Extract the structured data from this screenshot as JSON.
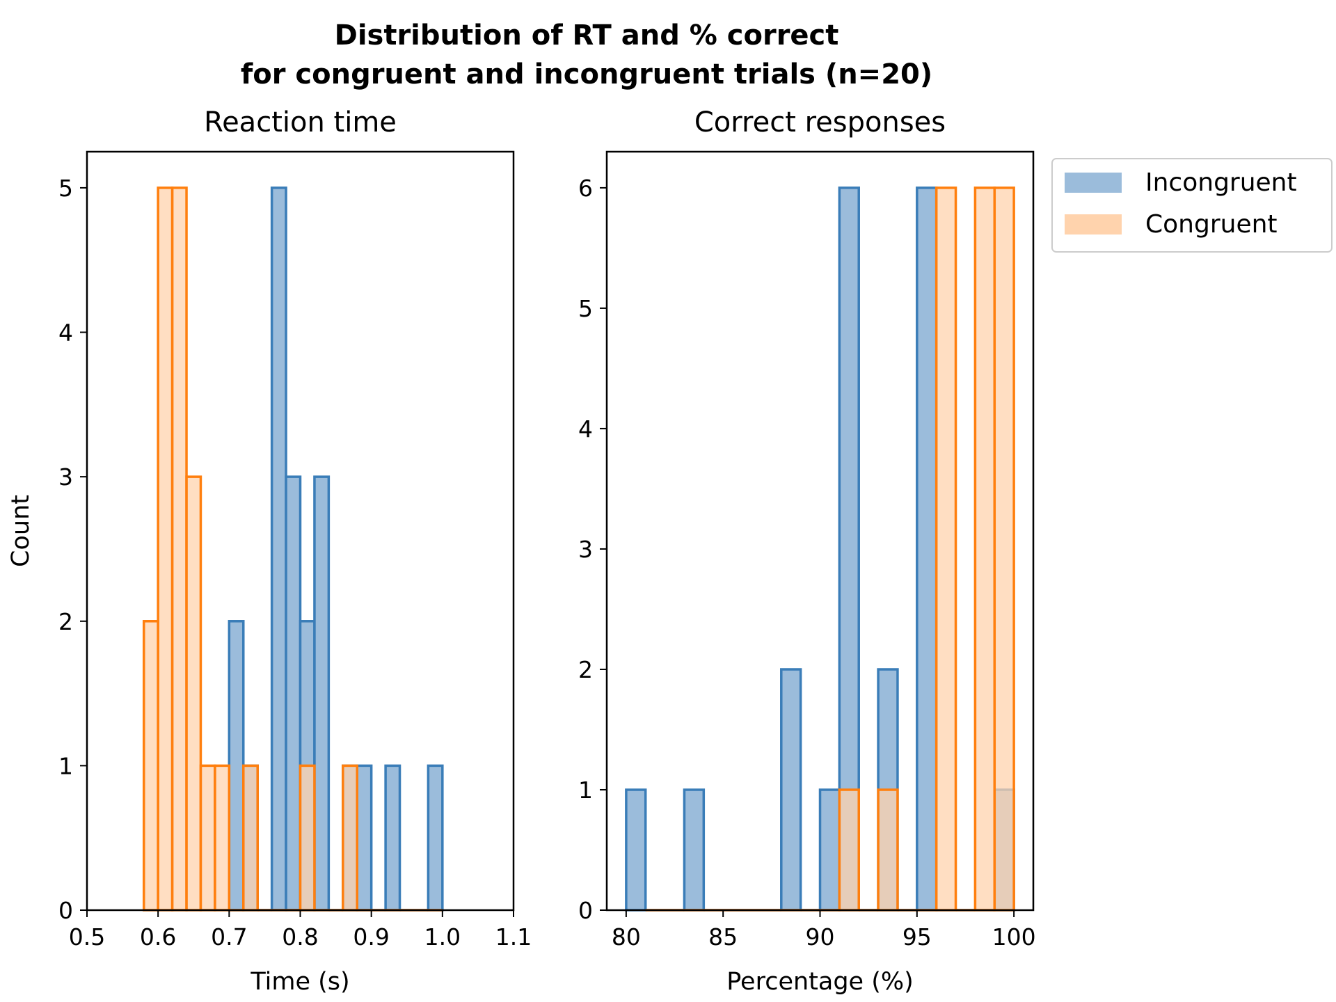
{
  "figure": {
    "title_line1": "Distribution of RT and % correct",
    "title_line2": "for congruent and incongruent trials (n=20)"
  },
  "colors": {
    "incongruent_edge": "#3a7db8",
    "incongruent_fill": "#9bbcdb",
    "congruent_edge": "#ff7f0e",
    "congruent_fill": "#ffd3ad"
  },
  "legend": {
    "placement": "outside-right",
    "items": [
      {
        "label": "Incongruent",
        "series": "incongruent"
      },
      {
        "label": "Congruent",
        "series": "congruent"
      }
    ]
  },
  "chart_data": [
    {
      "type": "bar",
      "subtype": "histogram",
      "title": "Reaction time",
      "xlabel": "Time (s)",
      "ylabel": "Count",
      "xlim": [
        0.5,
        1.1
      ],
      "ylim": [
        0,
        5.25
      ],
      "xticks": [
        "0.5",
        "0.6",
        "0.7",
        "0.8",
        "0.9",
        "1.0",
        "1.1"
      ],
      "yticks": [
        "0",
        "1",
        "2",
        "3",
        "4",
        "5"
      ],
      "bin_width": 0.02,
      "series": [
        {
          "name": "Incongruent",
          "key": "incongruent",
          "bin_starts": [
            0.7,
            0.72,
            0.74,
            0.76,
            0.78,
            0.8,
            0.82,
            0.84,
            0.86,
            0.88,
            0.9,
            0.92,
            0.94,
            0.96,
            0.98
          ],
          "values": [
            2,
            1,
            0,
            5,
            3,
            2,
            3,
            0,
            1,
            1,
            0,
            1,
            0,
            0,
            1
          ]
        },
        {
          "name": "Congruent",
          "key": "congruent",
          "bin_starts": [
            0.58,
            0.6,
            0.62,
            0.64,
            0.66,
            0.68,
            0.7,
            0.72,
            0.74,
            0.76,
            0.78,
            0.8,
            0.82,
            0.84,
            0.86,
            0.88,
            0.9,
            0.92,
            0.94,
            0.96,
            0.98
          ],
          "values": [
            2,
            5,
            5,
            3,
            1,
            1,
            0,
            1,
            0,
            0,
            0,
            1,
            0,
            0,
            1,
            0,
            0,
            0,
            0,
            0,
            0
          ]
        }
      ]
    },
    {
      "type": "bar",
      "subtype": "histogram",
      "title": "Correct responses",
      "xlabel": "Percentage (%)",
      "ylabel": "",
      "xlim": [
        79,
        101
      ],
      "ylim": [
        0,
        6.3
      ],
      "xticks": [
        "80",
        "85",
        "90",
        "95",
        "100"
      ],
      "yticks": [
        "0",
        "1",
        "2",
        "3",
        "4",
        "5",
        "6"
      ],
      "bin_width": 1,
      "series": [
        {
          "name": "Incongruent",
          "key": "incongruent",
          "bin_starts": [
            80,
            81,
            82,
            83,
            84,
            85,
            86,
            87,
            88,
            89,
            90,
            91,
            92,
            93,
            94,
            95,
            96,
            97,
            98,
            99
          ],
          "values": [
            1,
            0,
            0,
            1,
            0,
            0,
            0,
            0,
            2,
            0,
            1,
            6,
            0,
            2,
            0,
            6,
            0,
            0,
            0,
            1
          ]
        },
        {
          "name": "Congruent",
          "key": "congruent",
          "bin_starts": [
            81,
            82,
            83,
            84,
            85,
            86,
            87,
            88,
            89,
            90,
            91,
            92,
            93,
            94,
            95,
            96,
            97,
            98,
            99
          ],
          "values": [
            0,
            0,
            0,
            0,
            0,
            0,
            0,
            0,
            0,
            0,
            1,
            0,
            1,
            0,
            0,
            6,
            0,
            6,
            6
          ]
        }
      ]
    }
  ]
}
